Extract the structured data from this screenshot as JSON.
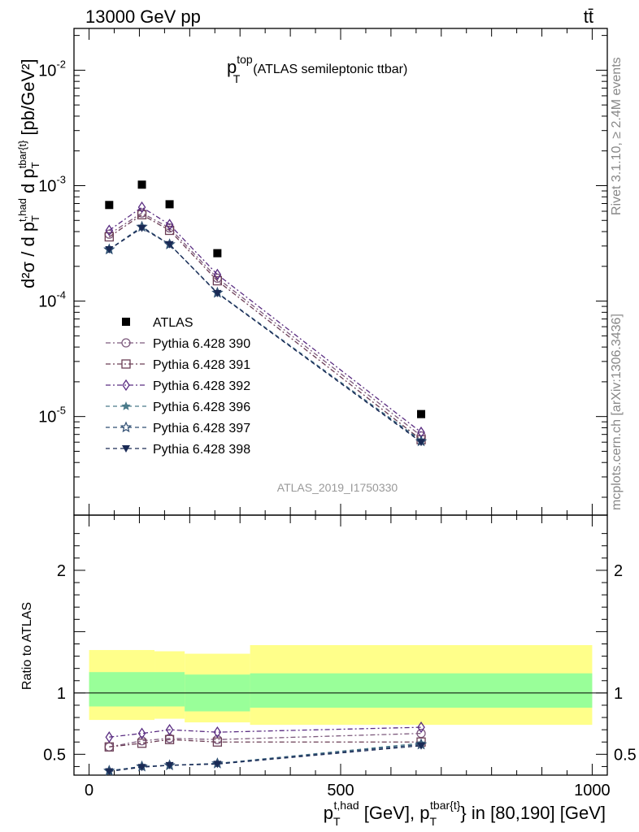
{
  "header": {
    "left": "13000 GeV pp",
    "right": "tt̄"
  },
  "plot_title": {
    "main": "p",
    "sub": "T",
    "sup": "top",
    "suffix": "(ATLAS semileptonic ttbar)"
  },
  "side_labels": {
    "rivet": "Rivet 3.1.10, ≥ 2.4M events",
    "mcplots": "mcplots.cern.ch [arXiv:1306.3436]"
  },
  "analysis_id": "ATLAS_2019_I1750330",
  "ylabel_top": "d²σ / d p_T^{t,had} d p_T^{tbar{t}} [pb/GeV²]",
  "ylabel_bottom": "Ratio to ATLAS",
  "xlabel": "p_T^{t,had} [GeV], p_T^{tbar{t}} in [80,190] [GeV]",
  "chart_data": [
    {
      "type": "scatter",
      "panel": "main",
      "yscale": "log",
      "xlim": [
        -30,
        1030
      ],
      "ylim": [
        1.4e-06,
        0.023
      ],
      "y_tick_labels": [
        "10^-5",
        "10^-4",
        "10^-3",
        "10^-2"
      ],
      "y_tick_values": [
        1e-05,
        0.0001,
        0.001,
        0.01
      ],
      "x": [
        40,
        105,
        160,
        255,
        660
      ],
      "series": [
        {
          "name": "ATLAS",
          "marker": "square-filled",
          "color": "#000000",
          "values": [
            0.00068,
            0.00102,
            0.00069,
            0.00026,
            1.05e-05
          ]
        },
        {
          "name": "Pythia 6.428 390",
          "marker": "circle-open",
          "color": "#7d5a7d",
          "dash": "6,3,2,3",
          "values": [
            0.00038,
            0.00058,
            0.00043,
            0.000158,
            6.8e-06
          ]
        },
        {
          "name": "Pythia 6.428 391",
          "marker": "square-open",
          "color": "#6b3e55",
          "dash": "6,3,2,3",
          "values": [
            0.00036,
            0.00056,
            0.00041,
            0.00015,
            6.3e-06
          ]
        },
        {
          "name": "Pythia 6.428 392",
          "marker": "diamond-open",
          "color": "#5a2d82",
          "dash": "6,3,2,3",
          "values": [
            0.00041,
            0.00065,
            0.00046,
            0.00017,
            7.3e-06
          ]
        },
        {
          "name": "Pythia 6.428 396",
          "marker": "star-filled",
          "color": "#4a7a8a",
          "dash": "5,4",
          "values": [
            0.00028,
            0.00044,
            0.00031,
            0.000118,
            6.2e-06
          ]
        },
        {
          "name": "Pythia 6.428 397",
          "marker": "star-open",
          "color": "#2f4e72",
          "dash": "5,4",
          "values": [
            0.00028,
            0.00044,
            0.00031,
            0.000118,
            6.1e-06
          ]
        },
        {
          "name": "Pythia 6.428 398",
          "marker": "triangle-down-filled",
          "color": "#1a2a55",
          "dash": "5,4",
          "values": [
            0.00028,
            0.00043,
            0.00031,
            0.000117,
            6e-06
          ]
        }
      ]
    },
    {
      "type": "scatter",
      "panel": "ratio",
      "xlim": [
        -30,
        1030
      ],
      "ylim": [
        0.33,
        2.45
      ],
      "y_tick_labels": [
        "0.5",
        "1",
        "2"
      ],
      "y_tick_values": [
        0.5,
        1,
        2
      ],
      "x_tick_labels": [
        "0",
        "500",
        "1000"
      ],
      "x_tick_values": [
        0,
        500,
        1000
      ],
      "bands": [
        {
          "x0": 0,
          "x1": 130,
          "green": [
            0.89,
            1.17
          ],
          "yellow": [
            0.78,
            1.35
          ]
        },
        {
          "x0": 130,
          "x1": 190,
          "green": [
            0.89,
            1.17
          ],
          "yellow": [
            0.79,
            1.34
          ]
        },
        {
          "x0": 190,
          "x1": 320,
          "green": [
            0.85,
            1.15
          ],
          "yellow": [
            0.76,
            1.32
          ]
        },
        {
          "x0": 320,
          "x1": 1000,
          "green": [
            0.88,
            1.16
          ],
          "yellow": [
            0.74,
            1.39
          ]
        }
      ],
      "x": [
        40,
        105,
        160,
        255,
        660
      ],
      "series": [
        {
          "name": "Pythia 6.428 390",
          "values": [
            0.56,
            0.61,
            0.63,
            0.62,
            0.67
          ]
        },
        {
          "name": "Pythia 6.428 391",
          "values": [
            0.56,
            0.59,
            0.62,
            0.6,
            0.6
          ]
        },
        {
          "name": "Pythia 6.428 392",
          "values": [
            0.64,
            0.67,
            0.7,
            0.68,
            0.72
          ]
        },
        {
          "name": "Pythia 6.428 396",
          "values": [
            0.365,
            0.4,
            0.41,
            0.425,
            0.59
          ]
        },
        {
          "name": "Pythia 6.428 397",
          "values": [
            0.365,
            0.4,
            0.41,
            0.425,
            0.58
          ]
        },
        {
          "name": "Pythia 6.428 398",
          "values": [
            0.36,
            0.395,
            0.41,
            0.42,
            0.57
          ]
        }
      ]
    }
  ]
}
